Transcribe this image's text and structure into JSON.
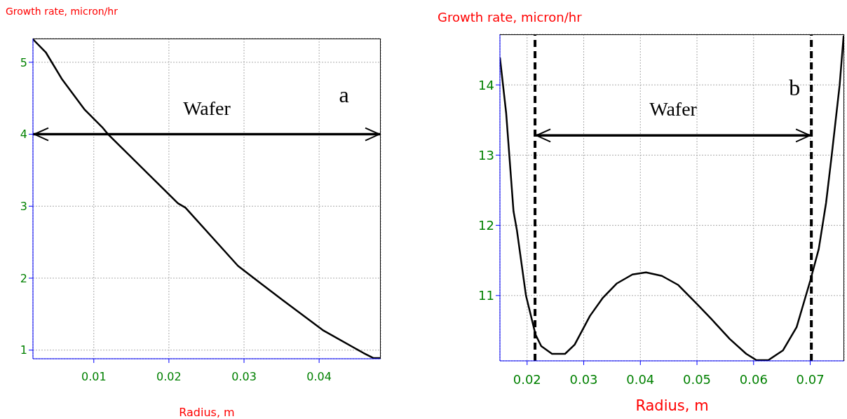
{
  "chart_data": [
    {
      "type": "line",
      "xlabel": "Radius, m",
      "ylabel": "Growth rate, micron/hr",
      "xlim": [
        0.0019,
        0.0482
      ],
      "ylim": [
        0.88,
        5.33
      ],
      "xticks": [
        0.01,
        0.02,
        0.03,
        0.04
      ],
      "yticks": [
        1,
        2,
        3,
        4,
        5
      ],
      "grid": true,
      "x": [
        0.0019,
        0.0036,
        0.0058,
        0.0088,
        0.0111,
        0.0119,
        0.0212,
        0.0222,
        0.0292,
        0.0322,
        0.0352,
        0.0406,
        0.0459,
        0.0472,
        0.0482
      ],
      "series": [
        {
          "color": "#000000",
          "values": [
            5.32,
            5.14,
            4.76,
            4.34,
            4.1,
            4.0,
            3.04,
            2.98,
            2.17,
            1.93,
            1.69,
            1.27,
            0.96,
            0.89,
            0.89
          ]
        }
      ],
      "ref_lines": [
        {
          "axis": "y",
          "value": 4.0,
          "label": "Wafer",
          "color": "#000000"
        }
      ],
      "annotations": [
        "a"
      ]
    },
    {
      "type": "line",
      "xlabel": "Radius, m",
      "ylabel": "Growth rate, micron/hr",
      "xlim": [
        0.0152,
        0.076
      ],
      "ylim": [
        10.07,
        14.72
      ],
      "xticks": [
        0.02,
        0.03,
        0.04,
        0.05,
        0.06,
        0.07
      ],
      "yticks": [
        11,
        12,
        13,
        14
      ],
      "grid": true,
      "x": [
        0.0152,
        0.0163,
        0.0176,
        0.0182,
        0.0198,
        0.0215,
        0.0225,
        0.0244,
        0.0267,
        0.0284,
        0.0311,
        0.0334,
        0.0358,
        0.0386,
        0.041,
        0.0438,
        0.0467,
        0.05,
        0.0525,
        0.0558,
        0.0587,
        0.0605,
        0.0626,
        0.0652,
        0.0676,
        0.07,
        0.0715,
        0.0728,
        0.0738,
        0.0752,
        0.0759
      ],
      "series": [
        {
          "color": "#000000",
          "values": [
            14.39,
            13.6,
            12.2,
            11.93,
            11.0,
            10.44,
            10.28,
            10.17,
            10.17,
            10.3,
            10.71,
            10.97,
            11.17,
            11.3,
            11.33,
            11.28,
            11.15,
            10.88,
            10.67,
            10.38,
            10.17,
            10.08,
            10.08,
            10.22,
            10.55,
            11.21,
            11.66,
            12.32,
            13.0,
            14.0,
            14.7
          ]
        }
      ],
      "ref_lines": [
        {
          "axis": "x",
          "value": 0.0214,
          "line_style": "dashed",
          "color": "#000000"
        },
        {
          "axis": "x",
          "value": 0.0702,
          "line_style": "dashed",
          "color": "#000000"
        },
        {
          "axis": "y",
          "value": 13.28,
          "label": "Wafer",
          "color": "#000000"
        }
      ],
      "annotations": [
        "b"
      ]
    }
  ]
}
